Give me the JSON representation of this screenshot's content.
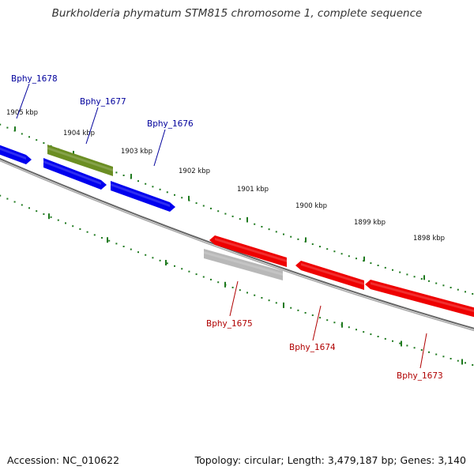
{
  "header": {
    "title": "Burkholderia phymatum STM815 chromosome 1, complete sequence"
  },
  "footer": {
    "accession": "Accession: NC_010622",
    "summary": "Topology: circular; Length: 3,479,187 bp; Genes: 3,140"
  },
  "colors": {
    "forward_gene": "#0000ee",
    "reverse_gene": "#ee0000",
    "other_gene": "#6b8e23",
    "pseudo_gene": "#b8b8b8",
    "ticks": "#1f7a1f",
    "backbone": "#808080",
    "forward_label": "#00009c",
    "reverse_label": "#b00000"
  },
  "scale_labels": [
    "1905 kbp",
    "1904 kbp",
    "1903 kbp",
    "1902 kbp",
    "1901 kbp",
    "1900 kbp",
    "1899 kbp",
    "1898 kbp"
  ],
  "genes": [
    {
      "name": "Bphy_1678",
      "strand": "forward"
    },
    {
      "name": "Bphy_1677",
      "strand": "forward"
    },
    {
      "name": "Bphy_1676",
      "strand": "forward"
    },
    {
      "name": "",
      "strand": "other"
    },
    {
      "name": "Bphy_1675",
      "strand": "reverse"
    },
    {
      "name": "",
      "strand": "pseudo"
    },
    {
      "name": "Bphy_1674",
      "strand": "reverse"
    },
    {
      "name": "Bphy_1673",
      "strand": "reverse"
    }
  ]
}
